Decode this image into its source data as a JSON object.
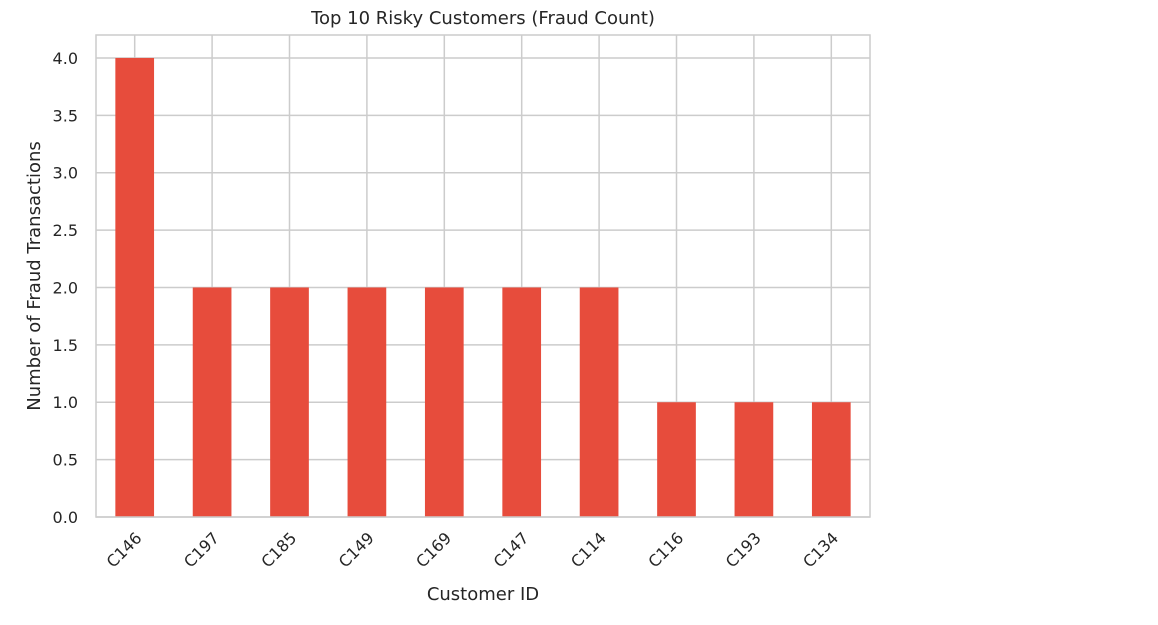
{
  "chart_data": {
    "type": "bar",
    "title": "Top 10 Risky Customers (Fraud Count)",
    "xlabel": "Customer ID",
    "ylabel": "Number of Fraud Transactions",
    "categories": [
      "C146",
      "C197",
      "C185",
      "C149",
      "C169",
      "C147",
      "C114",
      "C116",
      "C193",
      "C134"
    ],
    "values": [
      4,
      2,
      2,
      2,
      2,
      2,
      2,
      1,
      1,
      1
    ],
    "ylim": [
      0,
      4.2
    ],
    "yticks": [
      "0.0",
      "0.5",
      "1.0",
      "1.5",
      "2.0",
      "2.5",
      "3.0",
      "3.5",
      "4.0"
    ],
    "grid": true,
    "bar_color": "#e74c3c",
    "grid_color": "#cccccc",
    "axis_color": "#cccccc"
  }
}
